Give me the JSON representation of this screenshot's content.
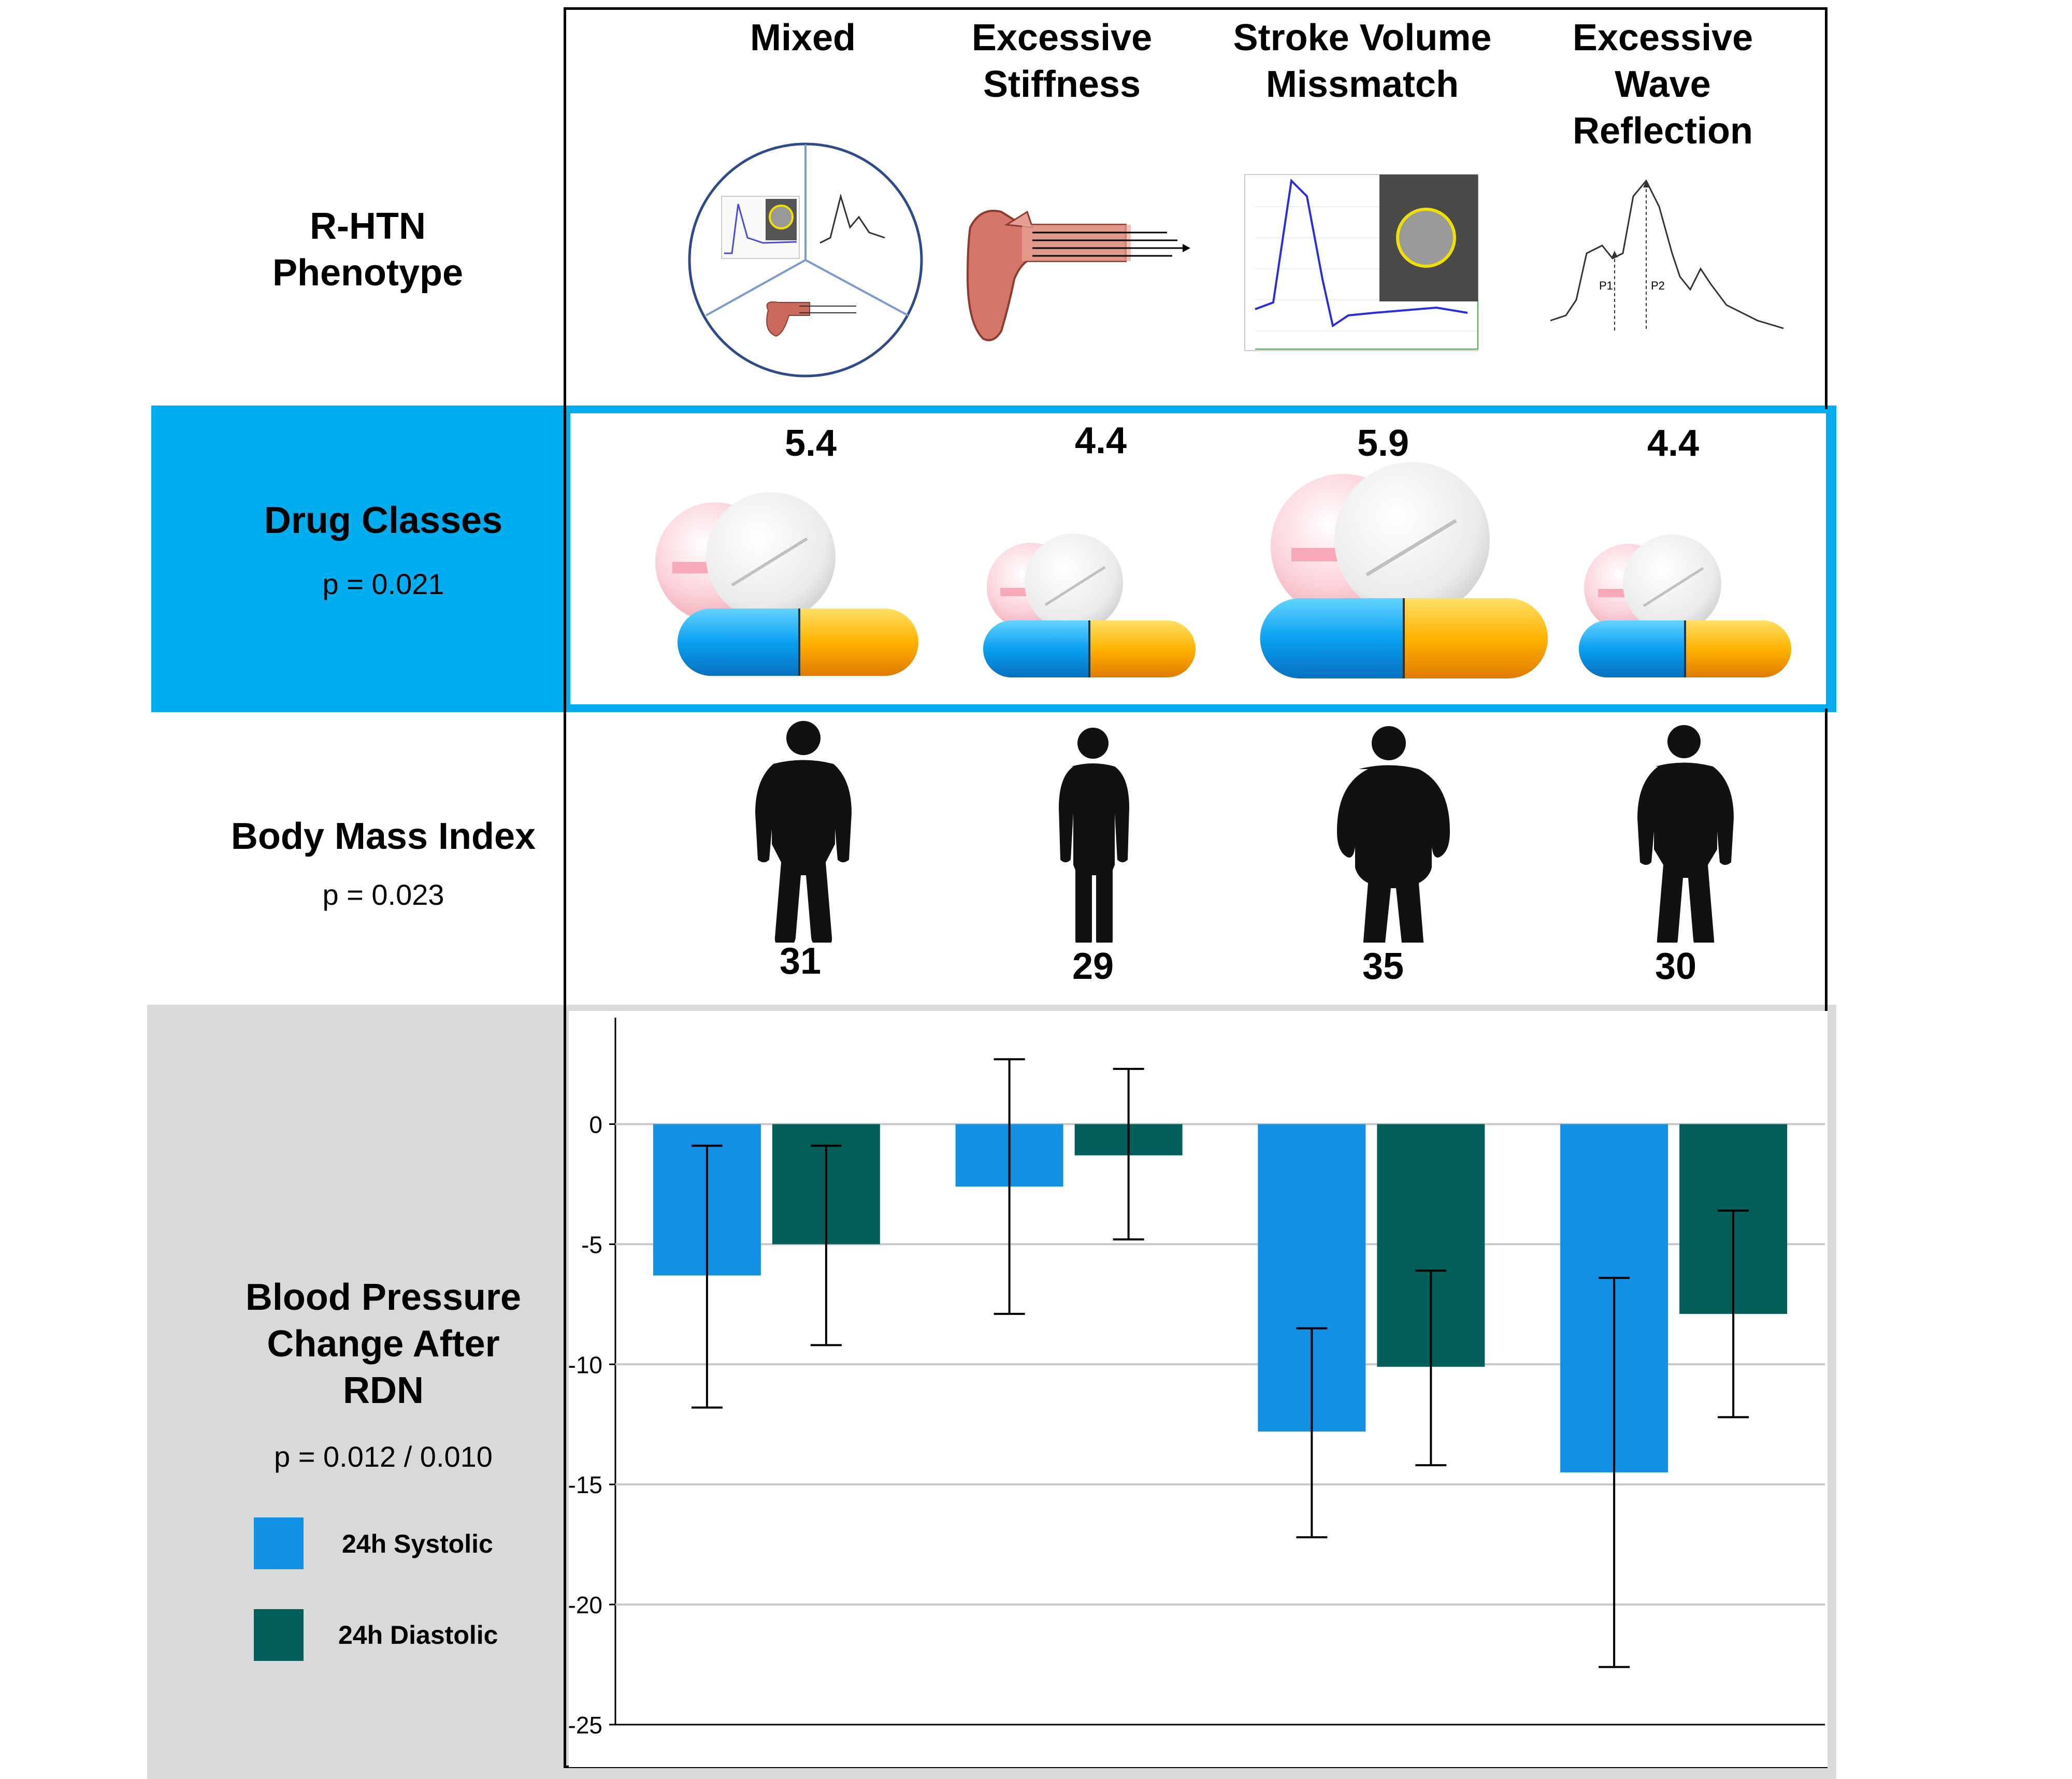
{
  "rows": {
    "phenotype": {
      "title": "R-HTN\nPhenotype"
    },
    "drugs": {
      "title": "Drug Classes",
      "p": "p = 0.021",
      "bg": "#00AEEF"
    },
    "bmi": {
      "title": "Body Mass Index",
      "p": "p = 0.023"
    },
    "bp": {
      "title": "Blood Pressure\nChange After\nRDN",
      "p": "p = 0.012 / 0.010",
      "bg": "#D9D9D9"
    }
  },
  "phenotypes": [
    {
      "name": "Mixed",
      "drug_classes": "5.4",
      "bmi": "31"
    },
    {
      "name": "Excessive\nStiffness",
      "drug_classes": "4.4",
      "bmi": "29"
    },
    {
      "name": "Stroke Volume\nMissmatch",
      "drug_classes": "5.9",
      "bmi": "35"
    },
    {
      "name": "Excessive\nWave\nReflection",
      "drug_classes": "4.4",
      "bmi": "30"
    }
  ],
  "mini_labels": {
    "p1": "P1",
    "p2": "P2"
  },
  "legend": [
    {
      "label": "24h Systolic",
      "color": "#1291E4"
    },
    {
      "label": "24h Diastolic",
      "color": "#035F5A"
    }
  ],
  "chart_data": {
    "type": "bar",
    "categories": [
      "Mixed",
      "Excessive Stiffness",
      "Stroke Volume Missmatch",
      "Excessive Wave Reflection"
    ],
    "series": [
      {
        "name": "24h Systolic",
        "color": "#1291E4",
        "values": [
          -6.3,
          -2.6,
          -12.8,
          -14.5
        ],
        "err_low": [
          -11.8,
          -7.9,
          -17.2,
          -22.6
        ],
        "err_high": [
          -0.9,
          2.7,
          -8.5,
          -6.4
        ]
      },
      {
        "name": "24h Diastolic",
        "color": "#035F5A",
        "values": [
          -5.0,
          -1.3,
          -10.1,
          -7.9
        ],
        "err_low": [
          -9.2,
          -4.8,
          -14.2,
          -12.2
        ],
        "err_high": [
          -0.9,
          2.3,
          -6.1,
          -3.6
        ]
      }
    ],
    "ylim": [
      -25,
      4
    ],
    "yticks": [
      0,
      -5,
      -10,
      -15,
      -20,
      -25
    ],
    "grid": true
  }
}
